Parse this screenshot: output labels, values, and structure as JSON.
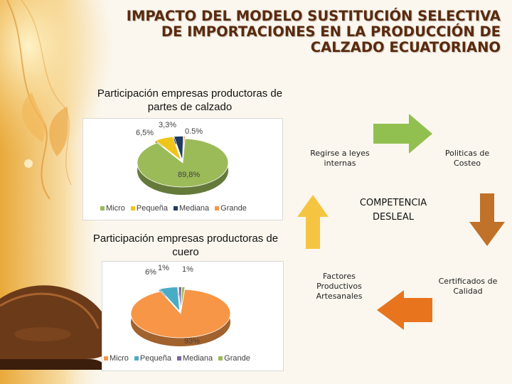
{
  "slide": {
    "title_lines": [
      "IMPACTO DEL MODELO SUSTITUCIÓN SELECTIVA",
      "DE IMPORTACIONES EN LA PRODUCCIÓN DE",
      "CALZADO ECUATORIANO"
    ]
  },
  "chart_data": [
    {
      "type": "pie",
      "title_lines": [
        "Participación empresas productoras de",
        "partes de calzado"
      ],
      "categories": [
        "Micro",
        "Pequeña",
        "Mediana",
        "Grande"
      ],
      "values": [
        89.8,
        6.5,
        3.3,
        0.5
      ],
      "labels": [
        "89,8%",
        "6,5%",
        "3,3%",
        "0.5%"
      ],
      "colors": [
        "#9bbb59",
        "#f0c419",
        "#1f3b60",
        "#f79646"
      ],
      "legend": "bottom",
      "three_d": true
    },
    {
      "type": "pie",
      "title_lines": [
        "Participación empresas productoras de",
        "cuero"
      ],
      "categories": [
        "Micro",
        "Pequeña",
        "Mediana",
        "Grande"
      ],
      "values": [
        93,
        6,
        1,
        1
      ],
      "labels": [
        "93%",
        "6%",
        "1%",
        "1%"
      ],
      "colors": [
        "#f79646",
        "#4bacc6",
        "#8064a2",
        "#9bbb59"
      ],
      "legend": "bottom",
      "three_d": true
    }
  ],
  "cycle": {
    "center_lines": [
      "COMPETENCIA",
      "DESLEAL"
    ],
    "items": [
      {
        "lines": [
          "Regirse a leyes",
          "internas"
        ]
      },
      {
        "lines": [
          "Politicas de",
          "Costeo"
        ]
      },
      {
        "lines": [
          "Certificados de",
          "Calidad"
        ]
      },
      {
        "lines": [
          "Factores",
          "Productivos",
          "Artesanales"
        ]
      }
    ],
    "arrow_colors": [
      "#92c050",
      "#c0712a",
      "#e8741e",
      "#f5c542"
    ]
  }
}
